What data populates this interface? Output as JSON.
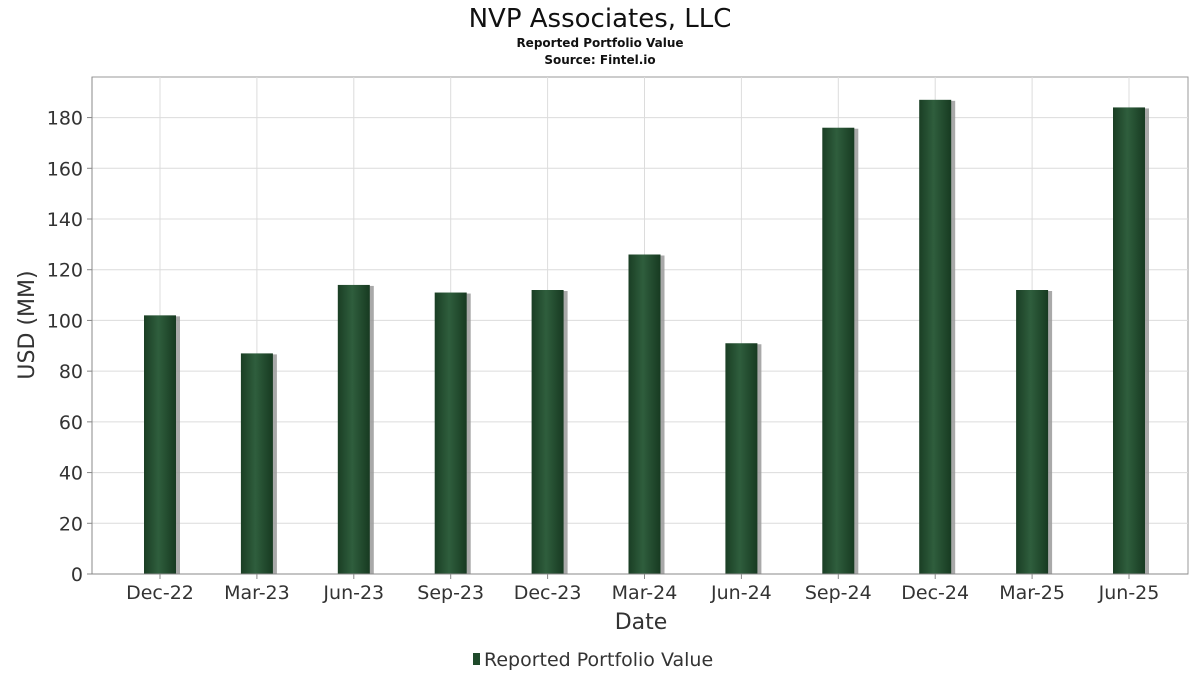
{
  "chart_data": {
    "type": "bar",
    "title": "NVP Associates, LLC",
    "subtitle_lines": [
      "Reported Portfolio Value",
      "Source: Fintel.io"
    ],
    "xlabel": "Date",
    "ylabel": "USD (MM)",
    "categories": [
      "Dec-22",
      "Mar-23",
      "Jun-23",
      "Sep-23",
      "Dec-23",
      "Mar-24",
      "Jun-24",
      "Sep-24",
      "Dec-24",
      "Mar-25",
      "Jun-25"
    ],
    "series": [
      {
        "name": "Reported Portfolio Value",
        "values": [
          102,
          87,
          114,
          111,
          112,
          126,
          91,
          176,
          187,
          112,
          184
        ]
      }
    ],
    "ylim": [
      0,
      196
    ],
    "yticks": [
      0,
      20,
      40,
      60,
      80,
      100,
      120,
      140,
      160,
      180
    ],
    "grid": true,
    "legend_position": "bottom",
    "bar_color": "#1f4a2b"
  }
}
